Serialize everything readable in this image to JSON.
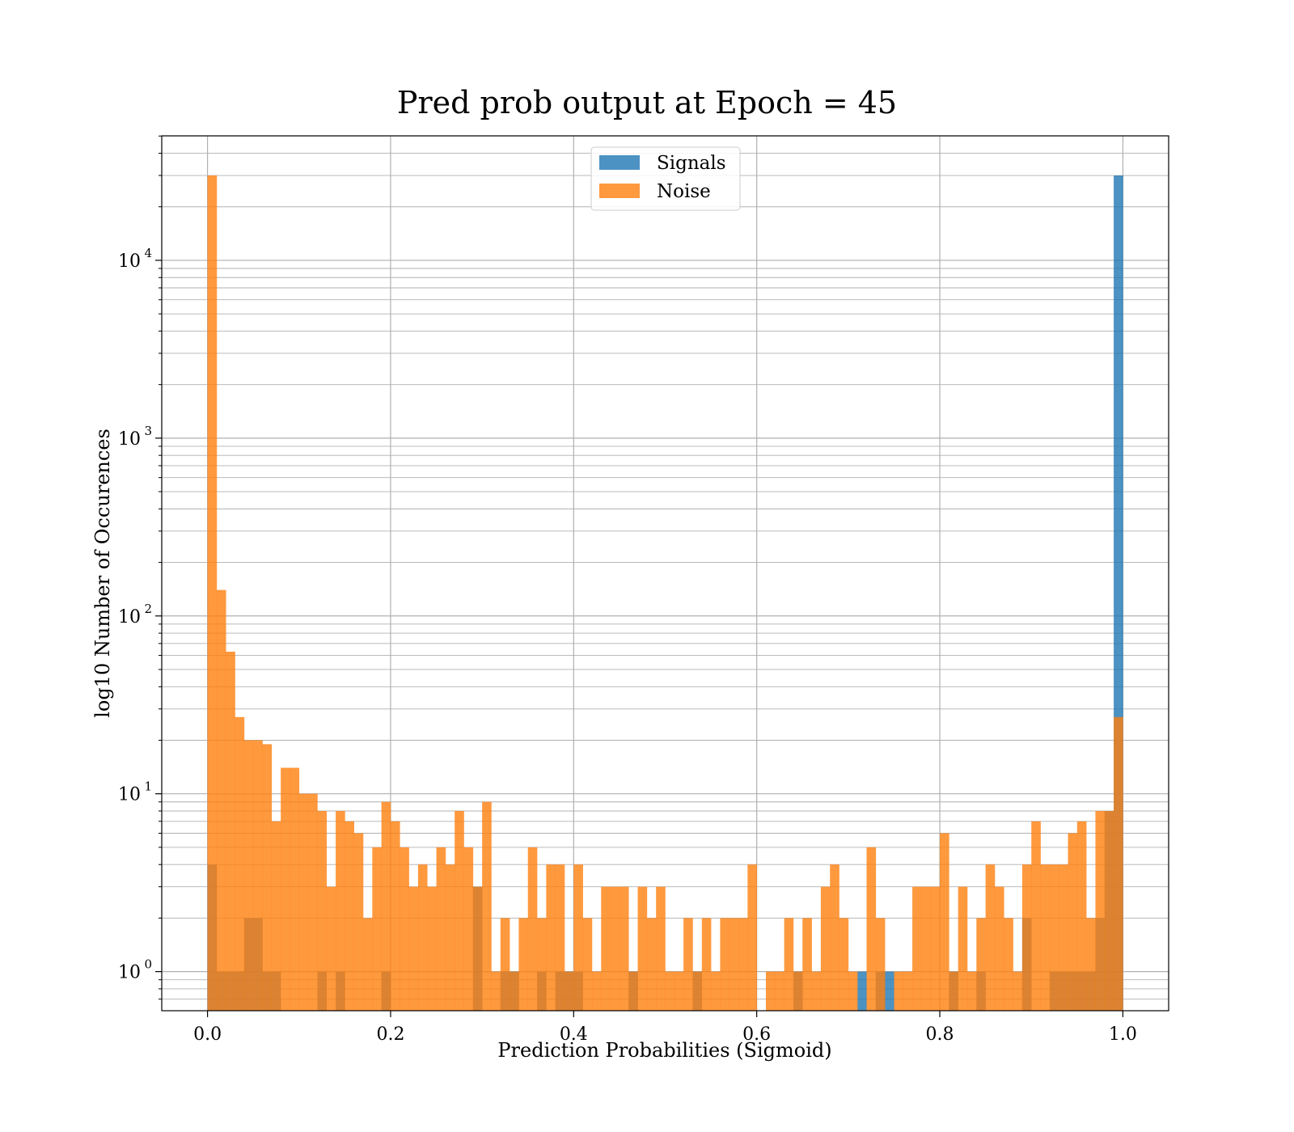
{
  "chart_data": {
    "type": "bar",
    "title": "Pred prob output at Epoch = 45",
    "xlabel": "Prediction Probabilities (Sigmoid)",
    "ylabel": "log10 Number of Occurences",
    "xlim": [
      -0.05,
      1.05
    ],
    "ylim_log10": [
      -0.22,
      4.7
    ],
    "yscale": "log",
    "grid": true,
    "legend": "upper-center",
    "x_ticks": [
      "0.0",
      "0.2",
      "0.4",
      "0.6",
      "0.8",
      "1.0"
    ],
    "x_tick_values": [
      0,
      0.2,
      0.4,
      0.6,
      0.8,
      1.0
    ],
    "y_ticks": [
      {
        "base": "10",
        "exp": "0",
        "value": 1
      },
      {
        "base": "10",
        "exp": "1",
        "value": 10
      },
      {
        "base": "10",
        "exp": "2",
        "value": 100
      },
      {
        "base": "10",
        "exp": "3",
        "value": 1000
      },
      {
        "base": "10",
        "exp": "4",
        "value": 10000
      }
    ],
    "bin_start": 0,
    "bin_width": 0.01,
    "series": [
      {
        "name": "Signals",
        "color": "#1f77b4",
        "values": [
          4,
          1,
          1,
          1,
          2,
          2,
          1,
          1,
          0,
          0,
          0,
          0,
          1,
          0,
          1,
          0,
          0,
          0,
          0,
          1,
          0,
          0,
          0,
          0,
          0,
          0,
          0,
          0,
          0,
          3,
          0,
          0,
          1,
          1,
          0,
          0,
          1,
          0,
          1,
          1,
          1,
          0,
          0,
          0,
          0,
          0,
          1,
          0,
          0,
          0,
          0,
          0,
          0,
          1,
          0,
          0,
          0,
          0,
          0,
          0,
          0,
          0,
          0,
          0,
          1,
          0,
          0,
          0,
          0,
          0,
          0,
          1,
          0,
          1,
          1,
          0,
          0,
          0,
          0,
          0,
          0,
          1,
          0,
          0,
          1,
          0,
          0,
          0,
          0,
          2,
          0,
          0,
          1,
          1,
          1,
          1,
          1,
          2,
          8,
          30000
        ]
      },
      {
        "name": "Noise",
        "color": "#ff7f0e",
        "values": [
          30000,
          140,
          63,
          27,
          20,
          20,
          19,
          7,
          14,
          14,
          10,
          10,
          8,
          3,
          8,
          7,
          6,
          2,
          5,
          9,
          7,
          5,
          3,
          4,
          3,
          5,
          4,
          8,
          5,
          3,
          9,
          1,
          2,
          1,
          2,
          5,
          2,
          4,
          4,
          1,
          4,
          2,
          1,
          3,
          3,
          3,
          1,
          3,
          2,
          3,
          1,
          1,
          2,
          1,
          2,
          1,
          2,
          2,
          2,
          4,
          0,
          1,
          1,
          2,
          1,
          2,
          1,
          3,
          4,
          2,
          1,
          0,
          5,
          2,
          0,
          1,
          1,
          3,
          3,
          3,
          6,
          1,
          3,
          1,
          2,
          4,
          3,
          2,
          1,
          4,
          7,
          4,
          4,
          4,
          6,
          7,
          2,
          8,
          8,
          27
        ]
      }
    ]
  }
}
